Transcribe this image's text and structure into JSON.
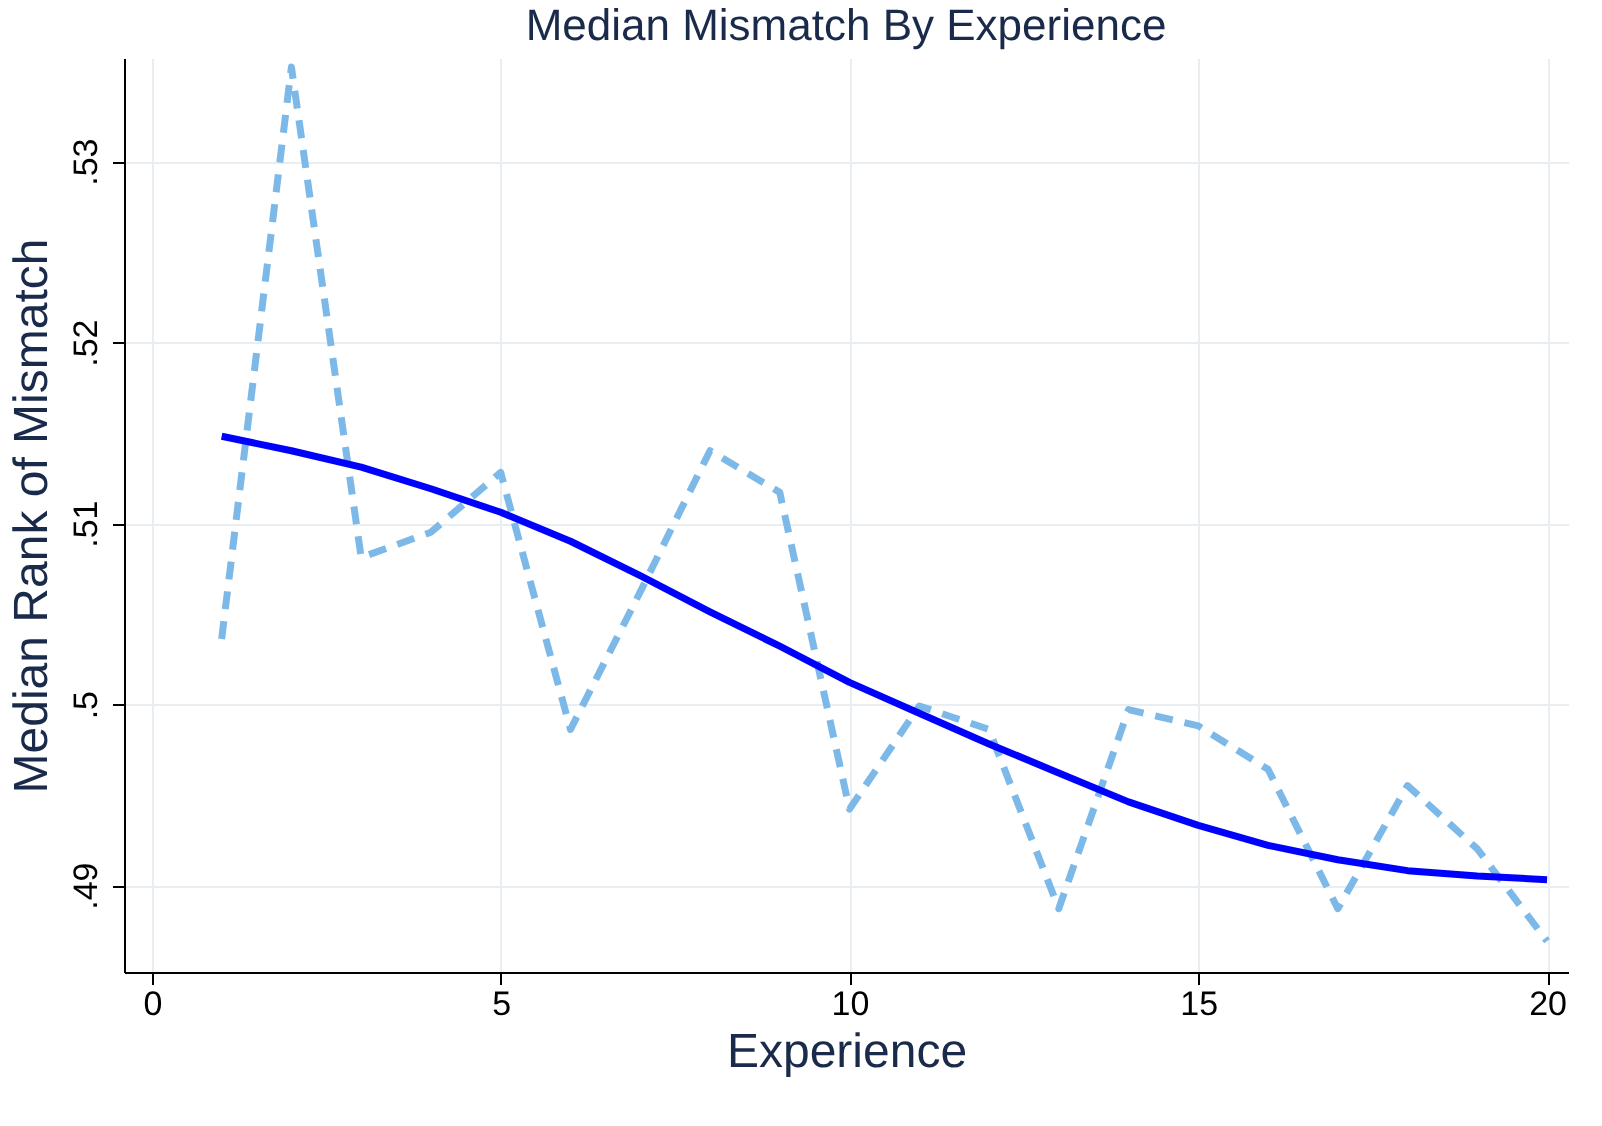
{
  "chart_data": {
    "type": "line",
    "title": "Median Mismatch By Experience",
    "xlabel": "Experience",
    "ylabel": "Median Rank of Mismatch",
    "x": [
      1,
      2,
      3,
      4,
      5,
      6,
      7,
      8,
      9,
      10,
      11,
      12,
      13,
      14,
      15,
      16,
      17,
      18,
      19,
      20
    ],
    "series": [
      {
        "color": "#7db9e8",
        "line_style": "dashed",
        "values": [
          0.5036,
          0.5352,
          0.5081,
          0.5095,
          0.5128,
          0.4986,
          0.5062,
          0.514,
          0.5117,
          0.4942,
          0.4999,
          0.4986,
          0.4887,
          0.4997,
          0.4988,
          0.4964,
          0.4887,
          0.4955,
          0.492,
          0.4869
        ]
      },
      {
        "color": "#0000ff",
        "line_style": "solid",
        "values": [
          0.5148,
          0.514,
          0.5131,
          0.5119,
          0.5106,
          0.509,
          0.5071,
          0.5051,
          0.5032,
          0.5012,
          0.4995,
          0.4978,
          0.4962,
          0.4946,
          0.4933,
          0.4922,
          0.4914,
          0.4908,
          0.4905,
          0.4903
        ]
      }
    ],
    "xlim": [
      -0.4,
      20.3
    ],
    "xticks": [
      0,
      5,
      10,
      15,
      20
    ],
    "ylim": [
      0.4852,
      0.5357
    ],
    "yticks": [
      {
        "value": 0.49,
        "label": ".49"
      },
      {
        "value": 0.5,
        "label": ".5"
      },
      {
        "value": 0.51,
        "label": ".51"
      },
      {
        "value": 0.52,
        "label": ".52"
      },
      {
        "value": 0.53,
        "label": ".53"
      }
    ],
    "grid": true,
    "marker": "none"
  }
}
